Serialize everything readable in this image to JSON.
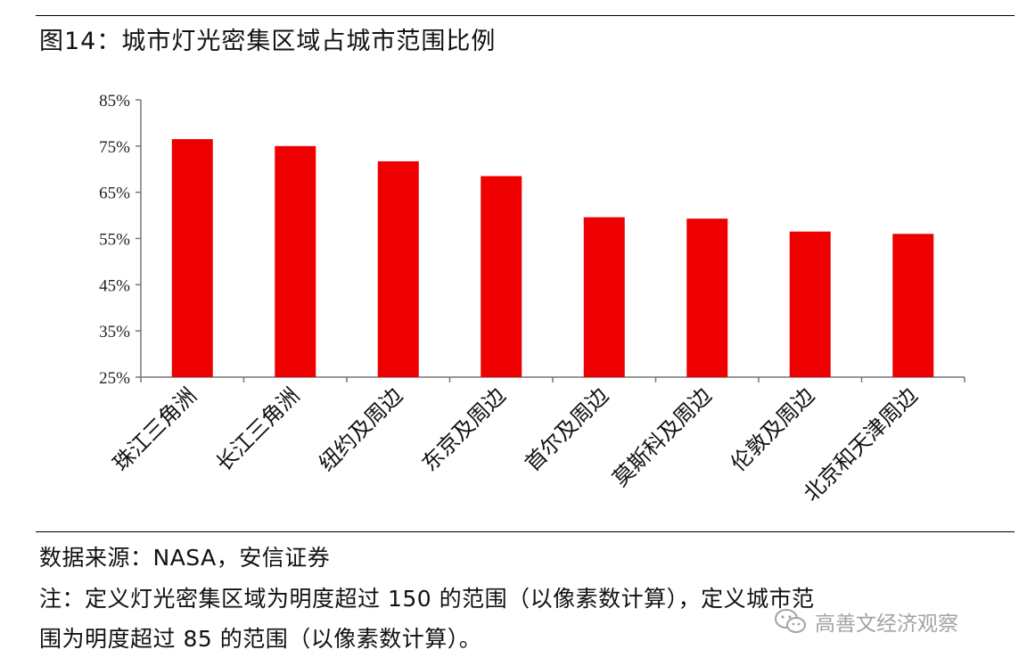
{
  "header": {
    "title": "图14：城市灯光密集区域占城市范围比例"
  },
  "footer": {
    "source": "数据来源：NASA，安信证券",
    "note_line1": "注：定义灯光密集区域为明度超过 150 的范围（以像素数计算），定义城市范",
    "note_line2": "围为明度超过 85 的范围（以像素数计算）。"
  },
  "watermark": {
    "text": "高善文经济观察",
    "icon": "wechat-icon"
  },
  "chart_data": {
    "type": "bar",
    "categories": [
      "珠江三角洲",
      "长江三角洲",
      "纽约及周边",
      "东京及周边",
      "首尔及周边",
      "莫斯科及周边",
      "伦敦及周边",
      "北京和天津周边"
    ],
    "values": [
      76.5,
      75.0,
      71.7,
      68.5,
      59.6,
      59.3,
      56.5,
      56.0
    ],
    "unit": "%",
    "ylim": [
      25,
      85
    ],
    "yticks": [
      25,
      35,
      45,
      55,
      65,
      75,
      85
    ],
    "ytick_labels": [
      "25%",
      "35%",
      "45%",
      "55%",
      "65%",
      "75%",
      "85%"
    ],
    "bar_color": "#ee0000",
    "grid": false,
    "legend": "none",
    "xlabel": "",
    "ylabel": ""
  }
}
